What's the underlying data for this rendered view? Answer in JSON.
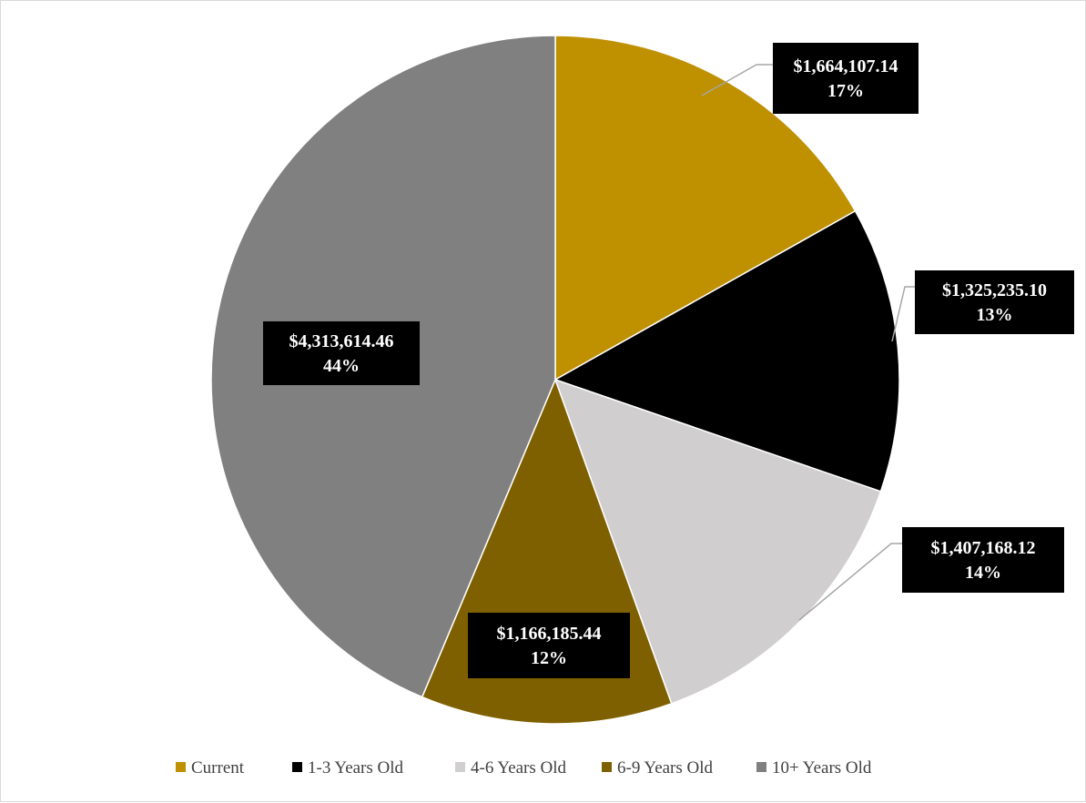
{
  "chart_data": {
    "type": "pie",
    "title": "",
    "legend_position": "bottom",
    "slices": [
      {
        "name": "Current",
        "value": 1664107.14,
        "value_label": "$1,664,107.14",
        "percent_label": "17%",
        "color": "#bf9000"
      },
      {
        "name": "1-3 Years Old",
        "value": 1325235.1,
        "value_label": "$1,325,235.10",
        "percent_label": "13%",
        "color": "#000000"
      },
      {
        "name": "4-6 Years Old",
        "value": 1407168.12,
        "value_label": "$1,407,168.12",
        "percent_label": "14%",
        "color": "#d0cece"
      },
      {
        "name": "6-9 Years Old",
        "value": 1166185.44,
        "value_label": "$1,166,185.44",
        "percent_label": "12%",
        "color": "#7f6000"
      },
      {
        "name": "10+ Years Old",
        "value": 4313614.46,
        "value_label": "$4,313,614.46",
        "percent_label": "44%",
        "color": "#808080"
      }
    ]
  }
}
